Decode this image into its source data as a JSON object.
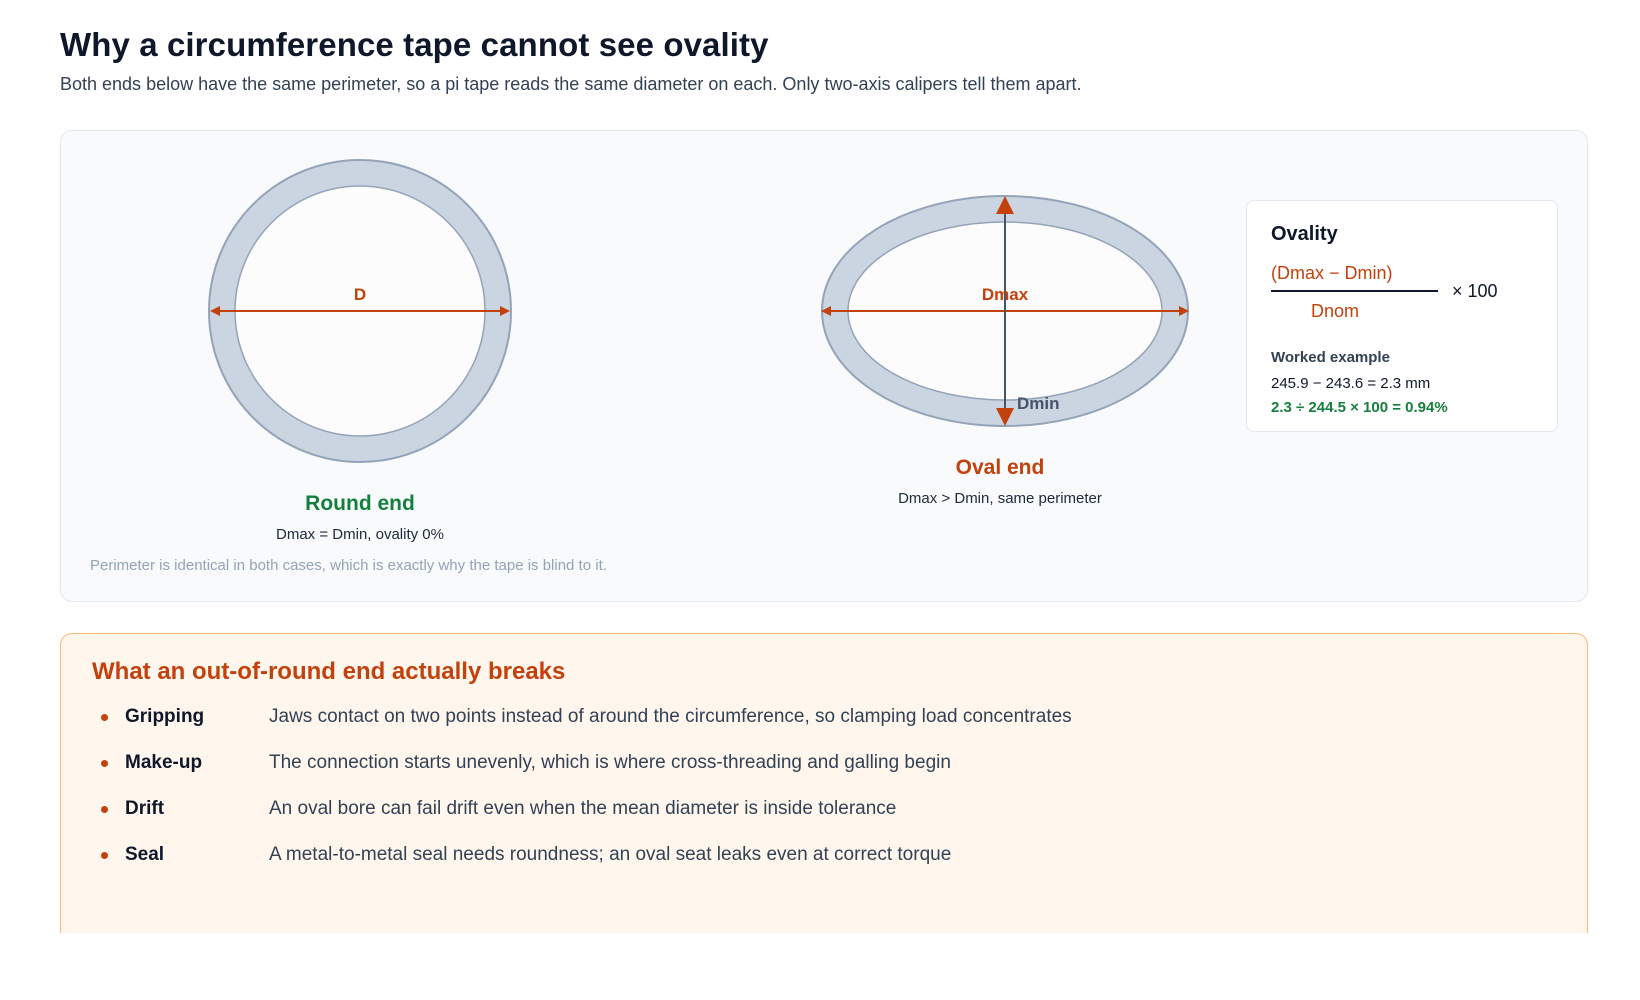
{
  "header": {
    "title": "Why a circumference tape cannot see ovality",
    "subtitle": "Both ends below have the same perimeter, so a pi tape reads the same diameter on each. Only two-axis calipers tell them apart."
  },
  "diagram": {
    "round": {
      "label_d": "D",
      "title": "Round end",
      "subtitle": "Dmax = Dmin, ovality 0%"
    },
    "oval": {
      "label_dmax": "Dmax",
      "label_dmin": "Dmin",
      "title": "Oval end",
      "subtitle": "Dmax > Dmin, same perimeter"
    },
    "footnote": "Perimeter is identical in both cases, which is exactly why the tape is blind to it.",
    "colors": {
      "ring_fill": "#cbd5e1",
      "ring_stroke": "#94a3b8",
      "bore_fill": "#fcfcfd",
      "accent": "#c2410c",
      "good": "#15803d",
      "axis_dark": "#475569"
    }
  },
  "ovality_card": {
    "title": "Ovality",
    "numerator": "(Dmax − Dmin)",
    "denominator": "Dnom",
    "multiplier": "× 100",
    "worked_title": "Worked example",
    "worked_line_1": "245.9 − 243.6 = 2.3 mm",
    "worked_line_2": "2.3 ÷ 244.5 × 100 = 0.94%"
  },
  "breaks": {
    "title": "What an out-of-round end actually breaks",
    "items": [
      {
        "term": "Gripping",
        "desc": "Jaws contact on two points instead of around the circumference, so clamping load concentrates"
      },
      {
        "term": "Make-up",
        "desc": "The connection starts unevenly, which is where cross-threading and galling begin"
      },
      {
        "term": "Drift",
        "desc": "An oval bore can fail drift even when the mean diameter is inside tolerance"
      },
      {
        "term": "Seal",
        "desc": "A metal-to-metal seal needs roundness; an oval seat leaks even at correct torque"
      }
    ]
  }
}
